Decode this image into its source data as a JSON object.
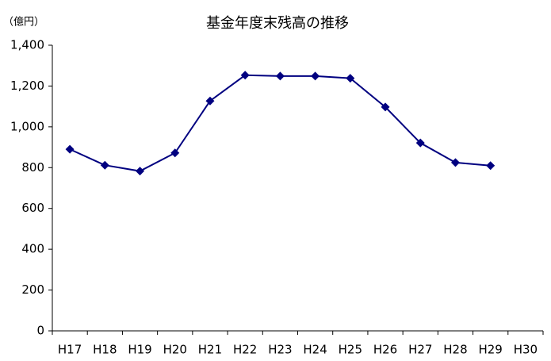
{
  "chart_data": {
    "type": "line",
    "title": "基金年度末残高の推移",
    "y_unit": "（億円）",
    "categories": [
      "H17",
      "H18",
      "H19",
      "H20",
      "H21",
      "H22",
      "H23",
      "H24",
      "H25",
      "H26",
      "H27",
      "H28",
      "H29",
      "H30"
    ],
    "values": [
      890,
      812,
      783,
      872,
      1127,
      1253,
      1249,
      1249,
      1238,
      1097,
      921,
      825,
      810,
      null
    ],
    "color": "#000080",
    "ylim": [
      0,
      1400
    ],
    "yticks": [
      0,
      200,
      400,
      600,
      800,
      {
        "value": 1000,
        "label": "1,000"
      },
      {
        "value": 1200,
        "label": "1,200"
      },
      {
        "value": 1400,
        "label": "1,400"
      }
    ],
    "grid": false
  }
}
